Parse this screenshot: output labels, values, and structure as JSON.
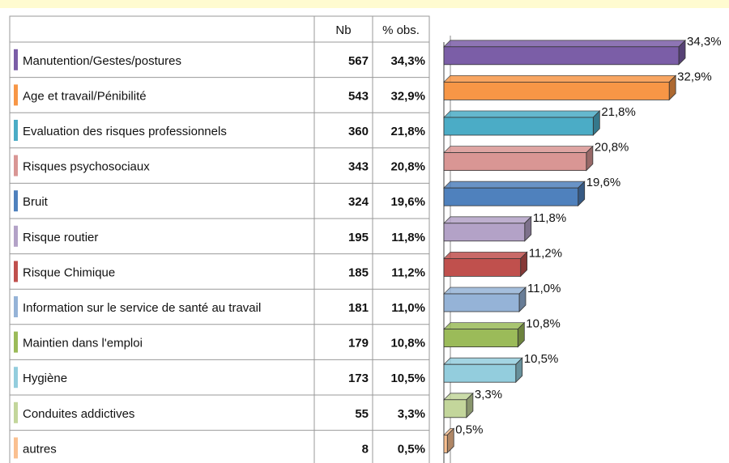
{
  "chart_data": {
    "type": "bar",
    "orientation": "horizontal",
    "columns": [
      "Nb",
      "% obs."
    ],
    "categories": [
      "Manutention/Gestes/postures",
      "Age et travail/Pénibilité",
      "Evaluation des risques professionnels",
      "Risques psychosociaux",
      "Bruit",
      "Risque routier",
      "Risque Chimique",
      "Information sur le service de santé au travail",
      "Maintien dans l'emploi",
      "Hygiène",
      "Conduites addictives",
      "autres"
    ],
    "counts": [
      567,
      543,
      360,
      343,
      324,
      195,
      185,
      181,
      179,
      173,
      55,
      8
    ],
    "values": [
      34.3,
      32.9,
      21.8,
      20.8,
      19.6,
      11.8,
      11.2,
      11.0,
      10.8,
      10.5,
      3.3,
      0.5
    ],
    "value_labels": [
      "34,3%",
      "32,9%",
      "21,8%",
      "20,8%",
      "19,6%",
      "11,8%",
      "11,2%",
      "11,0%",
      "10,8%",
      "10,5%",
      "3,3%",
      "0,5%"
    ],
    "colors": [
      "#7b5ea7",
      "#f79646",
      "#4bacc6",
      "#d99694",
      "#4f81bd",
      "#b3a2c7",
      "#c0504d",
      "#95b3d7",
      "#9bbb59",
      "#93cddd",
      "#c3d69b",
      "#fac090"
    ]
  }
}
